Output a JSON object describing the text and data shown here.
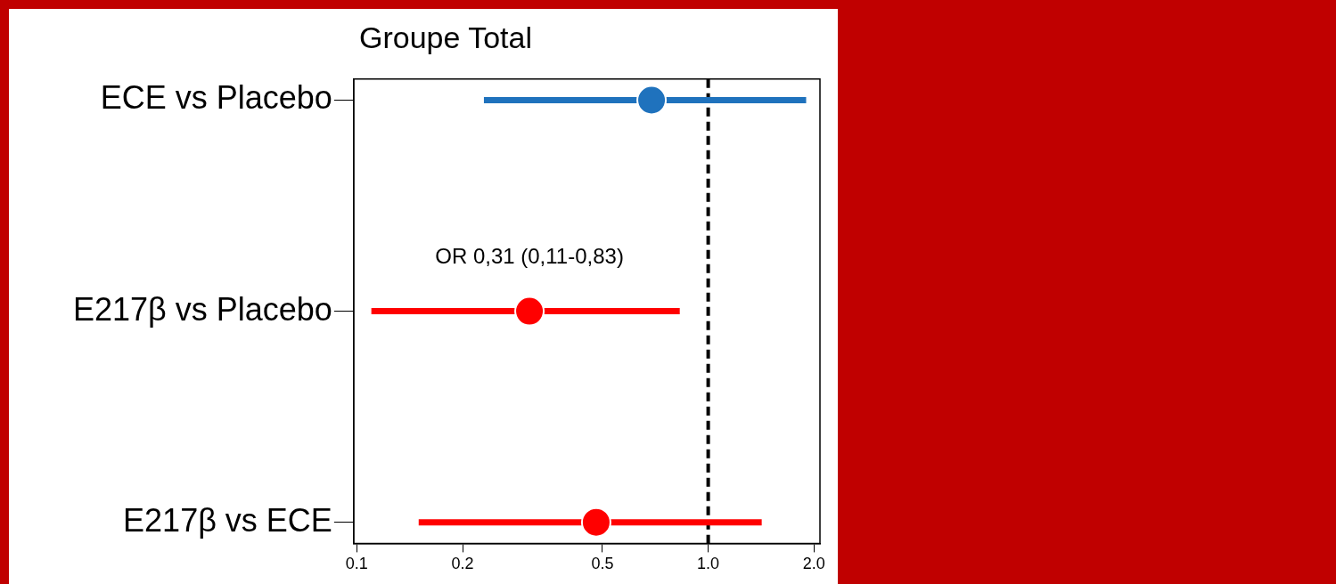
{
  "chart_data": {
    "type": "scatter",
    "orientation": "horizontal",
    "title": "Groupe Total",
    "categories": [
      "ECE vs Placebo",
      "E217β vs Placebo",
      "E217β vs ECE"
    ],
    "values": [
      0.69,
      0.31,
      0.48
    ],
    "errors": [
      [
        0.23,
        1.9
      ],
      [
        0.11,
        0.83
      ],
      [
        0.15,
        1.42
      ]
    ],
    "colors": [
      "#1f72bd",
      "#ff0000",
      "#ff0000"
    ],
    "log": "x",
    "xlim": [
      0.098,
      2.08
    ],
    "xticks": [
      0.1,
      0.2,
      0.5,
      {
        "value": 1,
        "label": "1.0"
      },
      {
        "value": 2,
        "label": "2.0"
      }
    ],
    "ref_lines": [
      {
        "axis": "x",
        "value": 1,
        "color": "#000000",
        "line_style": "dashed"
      }
    ],
    "annotations": [
      {
        "text": "OR 0,31 (0,11-0,83)",
        "x": 0.31,
        "y": "E217β vs Placebo"
      }
    ],
    "marker": "circle",
    "grid": false,
    "legend": false
  }
}
